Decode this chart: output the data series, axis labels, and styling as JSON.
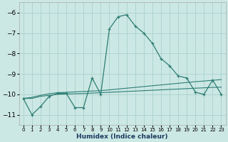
{
  "xlabel": "Humidex (Indice chaleur)",
  "background_color": "#cce8e4",
  "grid_color": "#aed4cf",
  "line_color": "#2d7d74",
  "xlim": [
    -0.5,
    23.5
  ],
  "ylim": [
    -11.5,
    -5.5
  ],
  "yticks": [
    -6,
    -7,
    -8,
    -9,
    -10,
    -11
  ],
  "xticks": [
    0,
    1,
    2,
    3,
    4,
    5,
    6,
    7,
    8,
    9,
    10,
    11,
    12,
    13,
    14,
    15,
    16,
    17,
    18,
    19,
    20,
    21,
    22,
    23
  ],
  "series1_x": [
    0,
    1,
    2,
    3,
    4,
    5,
    6,
    7,
    8,
    9,
    10,
    11,
    12,
    13,
    14,
    15,
    16,
    17,
    18,
    19,
    20,
    21,
    22,
    23
  ],
  "series1_y": [
    -10.2,
    -11.0,
    -10.6,
    -10.1,
    -9.95,
    -9.95,
    -10.65,
    -10.65,
    -9.2,
    -10.0,
    -6.8,
    -6.2,
    -6.1,
    -6.65,
    -7.0,
    -7.5,
    -8.25,
    -8.6,
    -9.1,
    -9.2,
    -9.9,
    -10.0,
    -9.3,
    -10.0
  ],
  "series2_x": [
    0,
    1,
    2,
    3,
    4,
    5,
    6,
    7,
    8,
    9,
    10,
    11,
    12,
    13,
    14,
    15,
    16,
    17,
    18,
    19,
    20,
    21,
    22,
    23
  ],
  "series2_y": [
    -10.2,
    -10.2,
    -10.1,
    -10.05,
    -10.0,
    -9.98,
    -9.97,
    -9.96,
    -9.94,
    -9.92,
    -9.9,
    -9.88,
    -9.86,
    -9.84,
    -9.82,
    -9.8,
    -9.78,
    -9.76,
    -9.74,
    -9.72,
    -9.7,
    -9.68,
    -9.66,
    -9.65
  ],
  "series3_x": [
    0,
    1,
    2,
    3,
    4,
    5,
    6,
    7,
    8,
    9,
    10,
    11,
    12,
    13,
    14,
    15,
    16,
    17,
    18,
    19,
    20,
    21,
    22,
    23
  ],
  "series3_y": [
    -10.2,
    -10.15,
    -10.05,
    -9.97,
    -9.92,
    -9.9,
    -9.88,
    -9.86,
    -9.84,
    -9.82,
    -9.78,
    -9.74,
    -9.7,
    -9.66,
    -9.62,
    -9.58,
    -9.54,
    -9.5,
    -9.46,
    -9.42,
    -9.38,
    -9.35,
    -9.31,
    -9.28
  ]
}
